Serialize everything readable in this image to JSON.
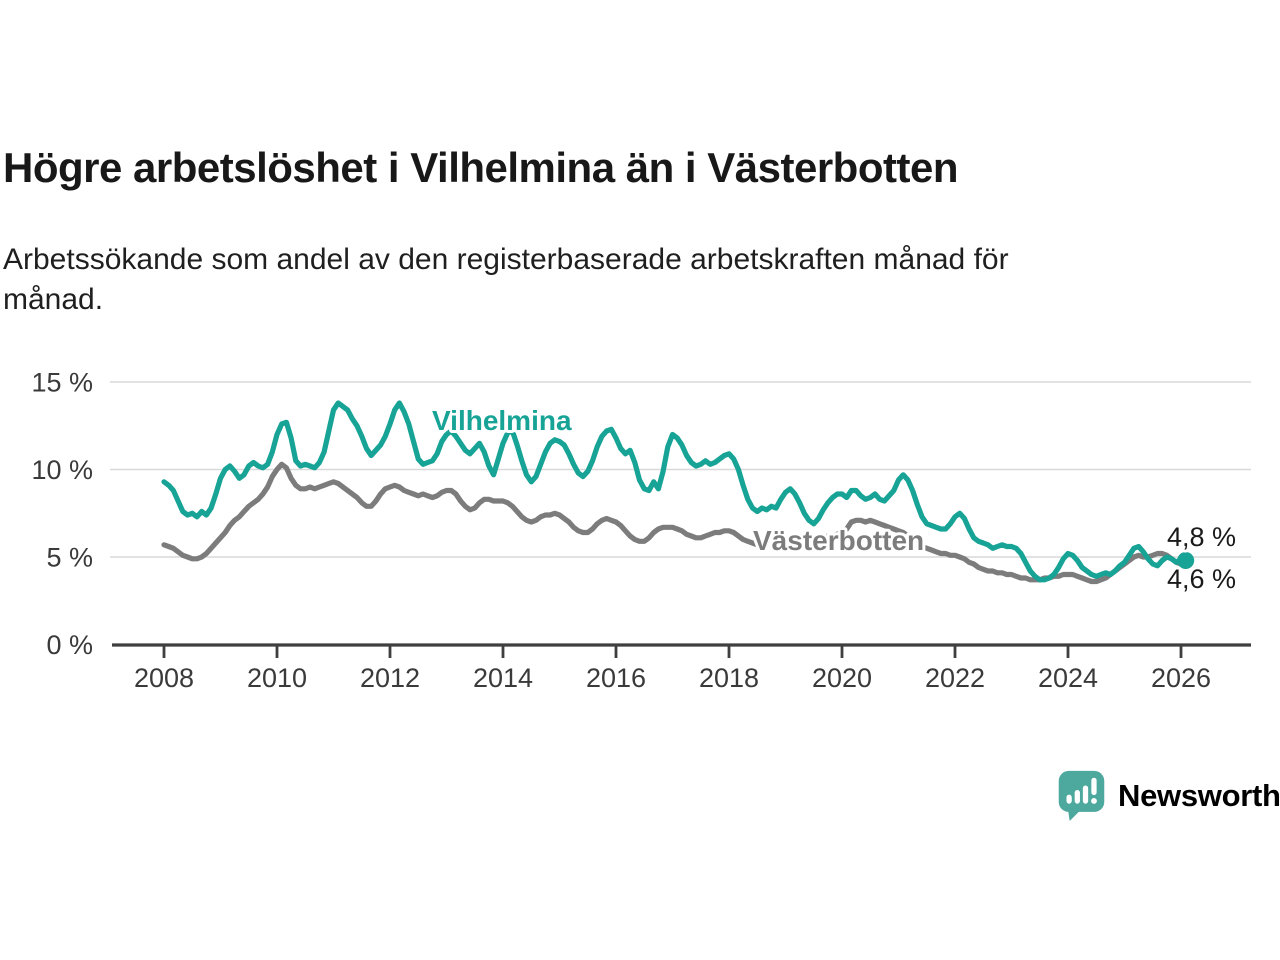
{
  "header": {
    "title": "Högre arbetslöshet i Vilhelmina än i Västerbotten",
    "subtitle_line1": "Arbetssökande som andel av den registerbaserade arbetskraften månad för",
    "subtitle_line2": "månad."
  },
  "chart_data": {
    "type": "line",
    "title": "Högre arbetslöshet i Vilhelmina än i Västerbotten",
    "subtitle": "Arbetssökande som andel av den registerbaserade arbetskraften månad för månad.",
    "unit": "%",
    "grid": "horizontal-only",
    "legend_position": "inline-labels",
    "ylim": [
      0,
      15
    ],
    "xlim_years": [
      2008,
      2026.2
    ],
    "y_ticks": [
      {
        "value": 0,
        "label": "0 %"
      },
      {
        "value": 5,
        "label": "5 %"
      },
      {
        "value": 10,
        "label": "10 %"
      },
      {
        "value": 15,
        "label": "15 %"
      }
    ],
    "x_ticks": [
      {
        "year": 2008,
        "label": "2008"
      },
      {
        "year": 2010,
        "label": "2010"
      },
      {
        "year": 2012,
        "label": "2012"
      },
      {
        "year": 2014,
        "label": "2014"
      },
      {
        "year": 2016,
        "label": "2016"
      },
      {
        "year": 2018,
        "label": "2018"
      },
      {
        "year": 2020,
        "label": "2020"
      },
      {
        "year": 2022,
        "label": "2022"
      },
      {
        "year": 2024,
        "label": "2024"
      },
      {
        "year": 2026,
        "label": "2026"
      }
    ],
    "series": [
      {
        "name": "Vilhelmina",
        "color": "#17a395",
        "start": "2008-01",
        "interval": "monthly",
        "end_label": "4,8 %",
        "end_value": 4.8,
        "values": [
          9.3,
          9.1,
          8.8,
          8.2,
          7.6,
          7.4,
          7.5,
          7.3,
          7.6,
          7.4,
          7.8,
          8.6,
          9.5,
          10.0,
          10.2,
          9.9,
          9.5,
          9.7,
          10.2,
          10.4,
          10.2,
          10.1,
          10.3,
          11.0,
          12.0,
          12.6,
          12.7,
          11.8,
          10.5,
          10.2,
          10.3,
          10.2,
          10.1,
          10.4,
          11.0,
          12.2,
          13.4,
          13.8,
          13.6,
          13.4,
          12.9,
          12.5,
          11.9,
          11.2,
          10.8,
          11.1,
          11.4,
          11.9,
          12.6,
          13.4,
          13.8,
          13.3,
          12.6,
          11.6,
          10.6,
          10.3,
          10.4,
          10.5,
          10.9,
          11.6,
          12.0,
          12.2,
          11.9,
          11.5,
          11.1,
          10.9,
          11.2,
          11.5,
          11.0,
          10.2,
          9.7,
          10.6,
          11.5,
          12.1,
          12.2,
          11.4,
          10.5,
          9.7,
          9.3,
          9.6,
          10.3,
          11.0,
          11.5,
          11.7,
          11.6,
          11.4,
          10.9,
          10.3,
          9.8,
          9.6,
          9.9,
          10.5,
          11.3,
          11.9,
          12.2,
          12.3,
          11.8,
          11.2,
          10.9,
          11.1,
          10.4,
          9.4,
          8.9,
          8.8,
          9.3,
          8.9,
          9.9,
          11.3,
          12.0,
          11.8,
          11.4,
          10.8,
          10.4,
          10.2,
          10.3,
          10.5,
          10.3,
          10.4,
          10.6,
          10.8,
          10.9,
          10.6,
          10.0,
          9.1,
          8.3,
          7.8,
          7.6,
          7.8,
          7.7,
          7.9,
          7.8,
          8.3,
          8.7,
          8.9,
          8.6,
          8.1,
          7.5,
          7.1,
          6.9,
          7.2,
          7.7,
          8.1,
          8.4,
          8.6,
          8.6,
          8.4,
          8.8,
          8.8,
          8.5,
          8.3,
          8.4,
          8.6,
          8.3,
          8.2,
          8.5,
          8.8,
          9.4,
          9.7,
          9.4,
          8.8,
          8.0,
          7.3,
          6.9,
          6.8,
          6.7,
          6.6,
          6.6,
          6.9,
          7.3,
          7.5,
          7.2,
          6.6,
          6.1,
          5.9,
          5.8,
          5.7,
          5.5,
          5.6,
          5.7,
          5.6,
          5.6,
          5.5,
          5.2,
          4.7,
          4.2,
          3.9,
          3.7,
          3.7,
          3.8,
          4.0,
          4.4,
          4.9,
          5.2,
          5.1,
          4.8,
          4.4,
          4.2,
          4.0,
          3.9,
          4.0,
          4.1,
          4.0,
          4.2,
          4.5,
          4.7,
          5.1,
          5.5,
          5.6,
          5.3,
          4.9,
          4.6,
          4.5,
          4.8,
          5.0,
          4.9,
          4.7,
          4.9,
          4.8
        ]
      },
      {
        "name": "Västerbotten",
        "color": "#7c7c7c",
        "start": "2008-01",
        "interval": "monthly",
        "end_label": "4,6 %",
        "end_value": 4.6,
        "values": [
          5.7,
          5.6,
          5.5,
          5.3,
          5.1,
          5.0,
          4.9,
          4.9,
          5.0,
          5.2,
          5.5,
          5.8,
          6.1,
          6.4,
          6.8,
          7.1,
          7.3,
          7.6,
          7.9,
          8.1,
          8.3,
          8.6,
          9.0,
          9.6,
          10.0,
          10.3,
          10.1,
          9.5,
          9.1,
          8.9,
          8.9,
          9.0,
          8.9,
          9.0,
          9.1,
          9.2,
          9.3,
          9.2,
          9.0,
          8.8,
          8.6,
          8.4,
          8.1,
          7.9,
          7.9,
          8.2,
          8.6,
          8.9,
          9.0,
          9.1,
          9.0,
          8.8,
          8.7,
          8.6,
          8.5,
          8.6,
          8.5,
          8.4,
          8.5,
          8.7,
          8.8,
          8.8,
          8.6,
          8.2,
          7.9,
          7.7,
          7.8,
          8.1,
          8.3,
          8.3,
          8.2,
          8.2,
          8.2,
          8.1,
          7.9,
          7.6,
          7.3,
          7.1,
          7.0,
          7.1,
          7.3,
          7.4,
          7.4,
          7.5,
          7.4,
          7.2,
          7.0,
          6.7,
          6.5,
          6.4,
          6.4,
          6.6,
          6.9,
          7.1,
          7.2,
          7.1,
          7.0,
          6.8,
          6.5,
          6.2,
          6.0,
          5.9,
          5.9,
          6.1,
          6.4,
          6.6,
          6.7,
          6.7,
          6.7,
          6.6,
          6.5,
          6.3,
          6.2,
          6.1,
          6.1,
          6.2,
          6.3,
          6.4,
          6.4,
          6.5,
          6.5,
          6.4,
          6.2,
          6.0,
          5.9,
          5.8,
          5.7,
          5.7,
          5.8,
          5.8,
          5.9,
          5.9,
          6.0,
          6.1,
          6.0,
          5.9,
          5.9,
          6.0,
          6.0,
          6.1,
          6.1,
          6.2,
          6.2,
          6.3,
          6.5,
          6.6,
          7.0,
          7.1,
          7.1,
          7.0,
          7.1,
          7.0,
          6.9,
          6.8,
          6.7,
          6.6,
          6.5,
          6.4,
          6.2,
          6.0,
          5.8,
          5.6,
          5.5,
          5.4,
          5.3,
          5.2,
          5.2,
          5.1,
          5.1,
          5.0,
          4.9,
          4.7,
          4.6,
          4.4,
          4.3,
          4.2,
          4.2,
          4.1,
          4.1,
          4.0,
          4.0,
          3.9,
          3.8,
          3.8,
          3.7,
          3.7,
          3.7,
          3.8,
          3.8,
          3.9,
          3.9,
          4.0,
          4.0,
          4.0,
          3.9,
          3.8,
          3.7,
          3.6,
          3.6,
          3.7,
          3.8,
          4.0,
          4.2,
          4.4,
          4.6,
          4.8,
          5.0,
          5.1,
          5.0,
          5.0,
          5.1,
          5.2,
          5.2,
          5.1,
          4.9,
          4.7,
          4.6,
          4.6
        ]
      }
    ]
  },
  "branding": {
    "logo_text": "Newsworthy",
    "logo_mark_color": "#4da89e",
    "logo_text_color": "#3ea294"
  },
  "colors": {
    "vilhelmina": "#17a395",
    "vasterbotten": "#7c7c7c",
    "gridline": "#d9d9d9",
    "axis": "#3f3f3f"
  }
}
